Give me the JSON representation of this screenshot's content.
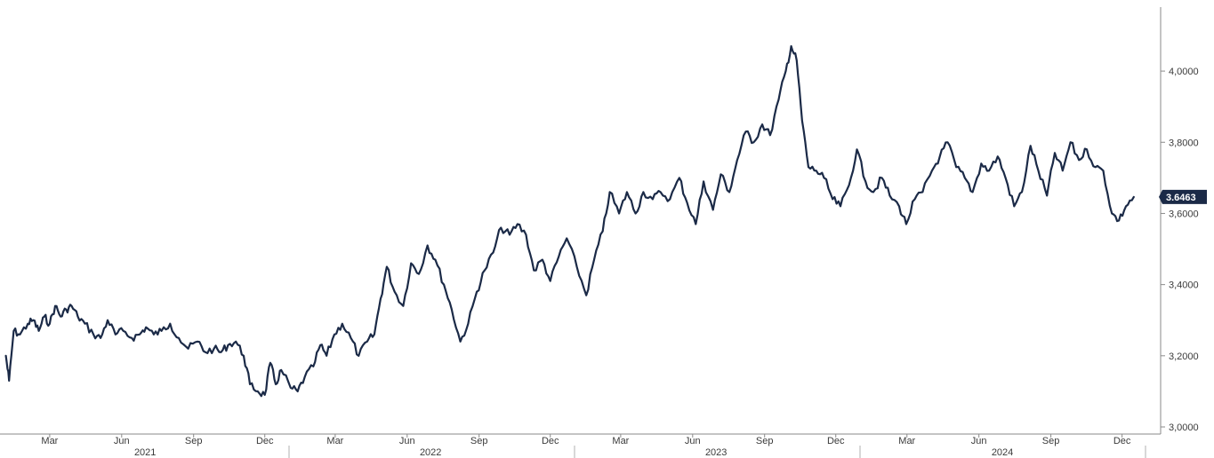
{
  "chart_data": {
    "type": "line",
    "title": "",
    "xlabel": "",
    "ylabel": "",
    "ylim": [
      3.0,
      4.15
    ],
    "xlim": [
      "2021-01-01",
      "2024-12-31"
    ],
    "y_ticks": [
      {
        "value": 3.0,
        "label": "3,0000"
      },
      {
        "value": 3.2,
        "label": "3,2000"
      },
      {
        "value": 3.4,
        "label": "3,4000"
      },
      {
        "value": 3.6,
        "label": "3,6000"
      },
      {
        "value": 3.8,
        "label": "3,8000"
      },
      {
        "value": 4.0,
        "label": "4,0000"
      }
    ],
    "x_month_ticks": [
      {
        "date": "2021-03-01",
        "label": "Mar"
      },
      {
        "date": "2021-06-01",
        "label": "Jun"
      },
      {
        "date": "2021-09-01",
        "label": "Sep"
      },
      {
        "date": "2021-12-01",
        "label": "Dec"
      },
      {
        "date": "2022-03-01",
        "label": "Mar"
      },
      {
        "date": "2022-06-01",
        "label": "Jun"
      },
      {
        "date": "2022-09-01",
        "label": "Sep"
      },
      {
        "date": "2022-12-01",
        "label": "Dec"
      },
      {
        "date": "2023-03-01",
        "label": "Mar"
      },
      {
        "date": "2023-06-01",
        "label": "Jun"
      },
      {
        "date": "2023-09-01",
        "label": "Sep"
      },
      {
        "date": "2023-12-01",
        "label": "Dec"
      },
      {
        "date": "2024-03-01",
        "label": "Mar"
      },
      {
        "date": "2024-06-01",
        "label": "Jun"
      },
      {
        "date": "2024-09-01",
        "label": "Sep"
      },
      {
        "date": "2024-12-01",
        "label": "Dec"
      }
    ],
    "x_year_labels": [
      {
        "year": "2021",
        "center": "2021-07-01"
      },
      {
        "year": "2022",
        "center": "2022-07-01"
      },
      {
        "year": "2023",
        "center": "2023-07-01"
      },
      {
        "year": "2024",
        "center": "2024-07-01"
      }
    ],
    "year_dividers": [
      "2022-01-01",
      "2023-01-01",
      "2024-01-01",
      "2024-12-31"
    ],
    "grid": false,
    "last_value": {
      "value": 3.6463,
      "label": "3.6463"
    },
    "series": [
      {
        "color": "#1b2a47",
        "points": [
          [
            "2021-01-04",
            3.2
          ],
          [
            "2021-01-08",
            3.13
          ],
          [
            "2021-01-14",
            3.27
          ],
          [
            "2021-01-22",
            3.26
          ],
          [
            "2021-02-01",
            3.29
          ],
          [
            "2021-02-08",
            3.3
          ],
          [
            "2021-02-15",
            3.27
          ],
          [
            "2021-02-22",
            3.31
          ],
          [
            "2021-03-01",
            3.29
          ],
          [
            "2021-03-08",
            3.34
          ],
          [
            "2021-03-15",
            3.31
          ],
          [
            "2021-03-22",
            3.33
          ],
          [
            "2021-03-29",
            3.34
          ],
          [
            "2021-04-06",
            3.31
          ],
          [
            "2021-04-15",
            3.29
          ],
          [
            "2021-04-26",
            3.26
          ],
          [
            "2021-05-05",
            3.25
          ],
          [
            "2021-05-14",
            3.3
          ],
          [
            "2021-05-24",
            3.26
          ],
          [
            "2021-06-03",
            3.27
          ],
          [
            "2021-06-14",
            3.25
          ],
          [
            "2021-06-24",
            3.26
          ],
          [
            "2021-07-02",
            3.28
          ],
          [
            "2021-07-12",
            3.26
          ],
          [
            "2021-07-22",
            3.27
          ],
          [
            "2021-08-02",
            3.29
          ],
          [
            "2021-08-13",
            3.25
          ],
          [
            "2021-08-25",
            3.22
          ],
          [
            "2021-09-06",
            3.24
          ],
          [
            "2021-09-16",
            3.21
          ],
          [
            "2021-09-27",
            3.22
          ],
          [
            "2021-10-06",
            3.21
          ],
          [
            "2021-10-15",
            3.23
          ],
          [
            "2021-10-25",
            3.24
          ],
          [
            "2021-11-04",
            3.2
          ],
          [
            "2021-11-12",
            3.12
          ],
          [
            "2021-11-22",
            3.1
          ],
          [
            "2021-12-01",
            3.09
          ],
          [
            "2021-12-08",
            3.18
          ],
          [
            "2021-12-15",
            3.12
          ],
          [
            "2021-12-22",
            3.16
          ],
          [
            "2022-01-03",
            3.11
          ],
          [
            "2022-01-12",
            3.1
          ],
          [
            "2022-01-21",
            3.14
          ],
          [
            "2022-02-01",
            3.17
          ],
          [
            "2022-02-10",
            3.23
          ],
          [
            "2022-02-18",
            3.2
          ],
          [
            "2022-02-28",
            3.26
          ],
          [
            "2022-03-10",
            3.29
          ],
          [
            "2022-03-21",
            3.25
          ],
          [
            "2022-03-31",
            3.2
          ],
          [
            "2022-04-11",
            3.24
          ],
          [
            "2022-04-20",
            3.26
          ],
          [
            "2022-04-28",
            3.36
          ],
          [
            "2022-05-06",
            3.45
          ],
          [
            "2022-05-16",
            3.38
          ],
          [
            "2022-05-27",
            3.34
          ],
          [
            "2022-06-06",
            3.46
          ],
          [
            "2022-06-16",
            3.43
          ],
          [
            "2022-06-27",
            3.51
          ],
          [
            "2022-07-07",
            3.47
          ],
          [
            "2022-07-18",
            3.4
          ],
          [
            "2022-07-28",
            3.33
          ],
          [
            "2022-08-08",
            3.24
          ],
          [
            "2022-08-18",
            3.29
          ],
          [
            "2022-08-29",
            3.38
          ],
          [
            "2022-09-08",
            3.44
          ],
          [
            "2022-09-19",
            3.49
          ],
          [
            "2022-09-29",
            3.56
          ],
          [
            "2022-10-10",
            3.54
          ],
          [
            "2022-10-20",
            3.57
          ],
          [
            "2022-10-31",
            3.54
          ],
          [
            "2022-11-10",
            3.44
          ],
          [
            "2022-11-21",
            3.47
          ],
          [
            "2022-12-01",
            3.41
          ],
          [
            "2022-12-12",
            3.48
          ],
          [
            "2022-12-22",
            3.53
          ],
          [
            "2023-01-04",
            3.45
          ],
          [
            "2023-01-16",
            3.37
          ],
          [
            "2023-01-26",
            3.47
          ],
          [
            "2023-02-06",
            3.55
          ],
          [
            "2023-02-15",
            3.66
          ],
          [
            "2023-02-27",
            3.6
          ],
          [
            "2023-03-09",
            3.66
          ],
          [
            "2023-03-20",
            3.6
          ],
          [
            "2023-03-30",
            3.66
          ],
          [
            "2023-04-11",
            3.64
          ],
          [
            "2023-04-21",
            3.66
          ],
          [
            "2023-05-03",
            3.64
          ],
          [
            "2023-05-15",
            3.7
          ],
          [
            "2023-05-25",
            3.63
          ],
          [
            "2023-06-05",
            3.57
          ],
          [
            "2023-06-15",
            3.69
          ],
          [
            "2023-06-27",
            3.61
          ],
          [
            "2023-07-07",
            3.71
          ],
          [
            "2023-07-18",
            3.66
          ],
          [
            "2023-07-28",
            3.75
          ],
          [
            "2023-08-08",
            3.83
          ],
          [
            "2023-08-18",
            3.8
          ],
          [
            "2023-08-29",
            3.85
          ],
          [
            "2023-09-08",
            3.82
          ],
          [
            "2023-09-19",
            3.92
          ],
          [
            "2023-09-28",
            4.0
          ],
          [
            "2023-10-05",
            4.07
          ],
          [
            "2023-10-12",
            4.03
          ],
          [
            "2023-10-19",
            3.86
          ],
          [
            "2023-10-27",
            3.73
          ],
          [
            "2023-11-06",
            3.72
          ],
          [
            "2023-11-16",
            3.7
          ],
          [
            "2023-11-27",
            3.64
          ],
          [
            "2023-12-07",
            3.62
          ],
          [
            "2023-12-18",
            3.68
          ],
          [
            "2023-12-28",
            3.78
          ],
          [
            "2024-01-08",
            3.69
          ],
          [
            "2024-01-18",
            3.66
          ],
          [
            "2024-01-29",
            3.7
          ],
          [
            "2024-02-08",
            3.65
          ],
          [
            "2024-02-20",
            3.62
          ],
          [
            "2024-02-29",
            3.57
          ],
          [
            "2024-03-11",
            3.64
          ],
          [
            "2024-03-21",
            3.66
          ],
          [
            "2024-04-02",
            3.72
          ],
          [
            "2024-04-12",
            3.76
          ],
          [
            "2024-04-22",
            3.8
          ],
          [
            "2024-05-03",
            3.73
          ],
          [
            "2024-05-14",
            3.7
          ],
          [
            "2024-05-24",
            3.66
          ],
          [
            "2024-06-04",
            3.74
          ],
          [
            "2024-06-14",
            3.72
          ],
          [
            "2024-06-25",
            3.76
          ],
          [
            "2024-07-05",
            3.7
          ],
          [
            "2024-07-16",
            3.62
          ],
          [
            "2024-07-26",
            3.66
          ],
          [
            "2024-08-06",
            3.79
          ],
          [
            "2024-08-16",
            3.72
          ],
          [
            "2024-08-27",
            3.65
          ],
          [
            "2024-09-06",
            3.77
          ],
          [
            "2024-09-16",
            3.72
          ],
          [
            "2024-09-26",
            3.8
          ],
          [
            "2024-10-07",
            3.75
          ],
          [
            "2024-10-17",
            3.78
          ],
          [
            "2024-10-28",
            3.73
          ],
          [
            "2024-11-07",
            3.72
          ],
          [
            "2024-11-18",
            3.6
          ],
          [
            "2024-11-27",
            3.58
          ],
          [
            "2024-12-06",
            3.62
          ],
          [
            "2024-12-16",
            3.6463
          ]
        ]
      }
    ]
  }
}
